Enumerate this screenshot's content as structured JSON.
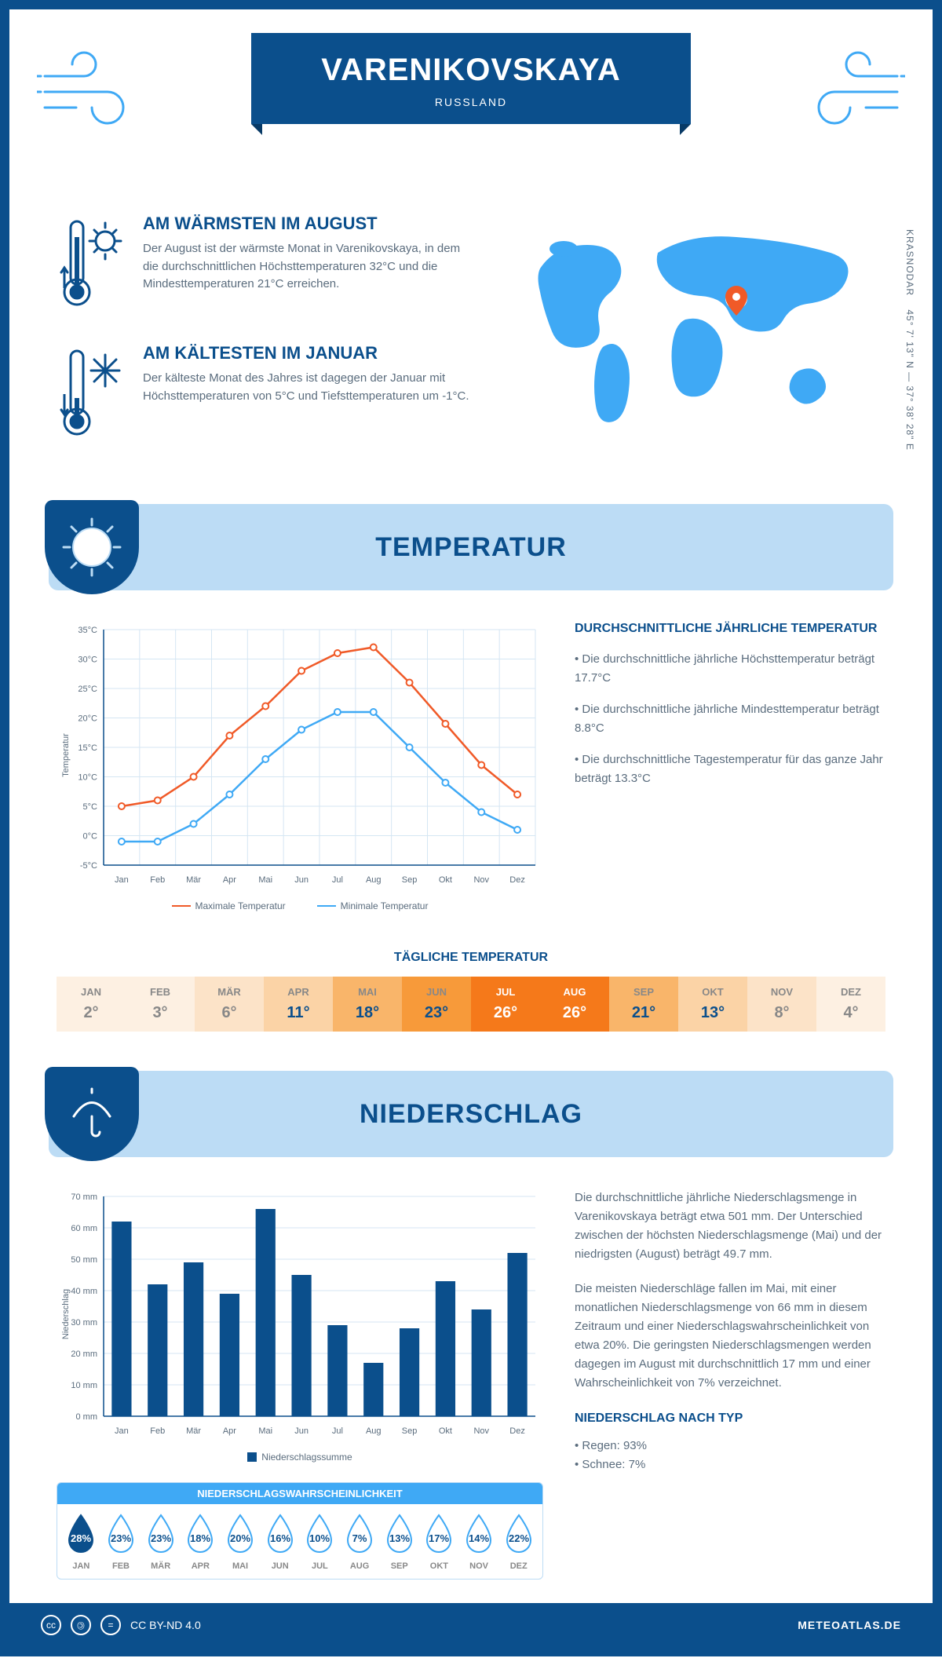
{
  "header": {
    "title": "VARENIKOVSKAYA",
    "subtitle": "RUSSLAND"
  },
  "coords": {
    "region": "KRASNODAR",
    "lat": "45° 7' 13\" N",
    "lon": "37° 38' 28\" E"
  },
  "warm": {
    "title": "AM WÄRMSTEN IM AUGUST",
    "text": "Der August ist der wärmste Monat in Varenikovskaya, in dem die durchschnittlichen Höchsttemperaturen 32°C und die Mindesttemperaturen 21°C erreichen."
  },
  "cold": {
    "title": "AM KÄLTESTEN IM JANUAR",
    "text": "Der kälteste Monat des Jahres ist dagegen der Januar mit Höchsttemperaturen von 5°C und Tiefsttemperaturen um -1°C."
  },
  "s_temp": {
    "title": "TEMPERATUR"
  },
  "s_precip": {
    "title": "NIEDERSCHLAG"
  },
  "temp_chart": {
    "months": [
      "Jan",
      "Feb",
      "Mär",
      "Apr",
      "Mai",
      "Jun",
      "Jul",
      "Aug",
      "Sep",
      "Okt",
      "Nov",
      "Dez"
    ],
    "max": [
      5,
      6,
      10,
      17,
      22,
      28,
      31,
      32,
      26,
      19,
      12,
      7
    ],
    "min": [
      -1,
      -1,
      2,
      7,
      13,
      18,
      21,
      21,
      15,
      9,
      4,
      1
    ],
    "max_color": "#f05a28",
    "min_color": "#3fa9f5",
    "ylim": [
      -5,
      35
    ],
    "ytick_step": 5,
    "ylabel": "Temperatur",
    "legend_max": "Maximale Temperatur",
    "legend_min": "Minimale Temperatur",
    "grid_color": "#d5e6f3",
    "axis_color": "#0b4f8c"
  },
  "temp_text": {
    "title": "DURCHSCHNITTLICHE JÄHRLICHE TEMPERATUR",
    "b1": "• Die durchschnittliche jährliche Höchsttemperatur beträgt 17.7°C",
    "b2": "• Die durchschnittliche jährliche Mindesttemperatur beträgt 8.8°C",
    "b3": "• Die durchschnittliche Tagestemperatur für das ganze Jahr beträgt 13.3°C"
  },
  "daily_temp": {
    "title": "TÄGLICHE TEMPERATUR",
    "months": [
      "JAN",
      "FEB",
      "MÄR",
      "APR",
      "MAI",
      "JUN",
      "JUL",
      "AUG",
      "SEP",
      "OKT",
      "NOV",
      "DEZ"
    ],
    "values": [
      "2°",
      "3°",
      "6°",
      "11°",
      "18°",
      "23°",
      "26°",
      "26°",
      "21°",
      "13°",
      "8°",
      "4°"
    ],
    "bg": [
      "#fdf0e2",
      "#fdf0e2",
      "#fce3c8",
      "#fbd3a6",
      "#f9b56a",
      "#f79a3a",
      "#f5791a",
      "#f5791a",
      "#f9b56a",
      "#fbd3a6",
      "#fce3c8",
      "#fdf0e2"
    ],
    "fg": [
      "#888",
      "#888",
      "#888",
      "#0b4f8c",
      "#0b4f8c",
      "#0b4f8c",
      "#fff",
      "#fff",
      "#0b4f8c",
      "#0b4f8c",
      "#888",
      "#888"
    ]
  },
  "precip_chart": {
    "months": [
      "Jan",
      "Feb",
      "Mär",
      "Apr",
      "Mai",
      "Jun",
      "Jul",
      "Aug",
      "Sep",
      "Okt",
      "Nov",
      "Dez"
    ],
    "values": [
      62,
      42,
      49,
      39,
      66,
      45,
      29,
      17,
      28,
      43,
      34,
      52
    ],
    "bar_color": "#0b4f8c",
    "ylim": [
      0,
      70
    ],
    "ytick_step": 10,
    "ylabel": "Niederschlag",
    "legend": "Niederschlagssumme",
    "grid_color": "#d5e6f3"
  },
  "precip_text": {
    "p1": "Die durchschnittliche jährliche Niederschlagsmenge in Varenikovskaya beträgt etwa 501 mm. Der Unterschied zwischen der höchsten Niederschlagsmenge (Mai) und der niedrigsten (August) beträgt 49.7 mm.",
    "p2": "Die meisten Niederschläge fallen im Mai, mit einer monatlichen Niederschlagsmenge von 66 mm in diesem Zeitraum und einer Niederschlagswahrscheinlichkeit von etwa 20%. Die geringsten Niederschlagsmengen werden dagegen im August mit durchschnittlich 17 mm und einer Wahrscheinlichkeit von 7% verzeichnet.",
    "type_title": "NIEDERSCHLAG NACH TYP",
    "t1": "• Regen: 93%",
    "t2": "• Schnee: 7%"
  },
  "prob": {
    "title": "NIEDERSCHLAGSWAHRSCHEINLICHKEIT",
    "months": [
      "JAN",
      "FEB",
      "MÄR",
      "APR",
      "MAI",
      "JUN",
      "JUL",
      "AUG",
      "SEP",
      "OKT",
      "NOV",
      "DEZ"
    ],
    "values": [
      "28%",
      "23%",
      "23%",
      "18%",
      "20%",
      "16%",
      "10%",
      "7%",
      "13%",
      "17%",
      "14%",
      "22%"
    ],
    "hl_index": 0,
    "fill_color": "#0b4f8c",
    "outline_color": "#3fa9f5"
  },
  "footer": {
    "license": "CC BY-ND 4.0",
    "site": "METEOATLAS.DE"
  }
}
